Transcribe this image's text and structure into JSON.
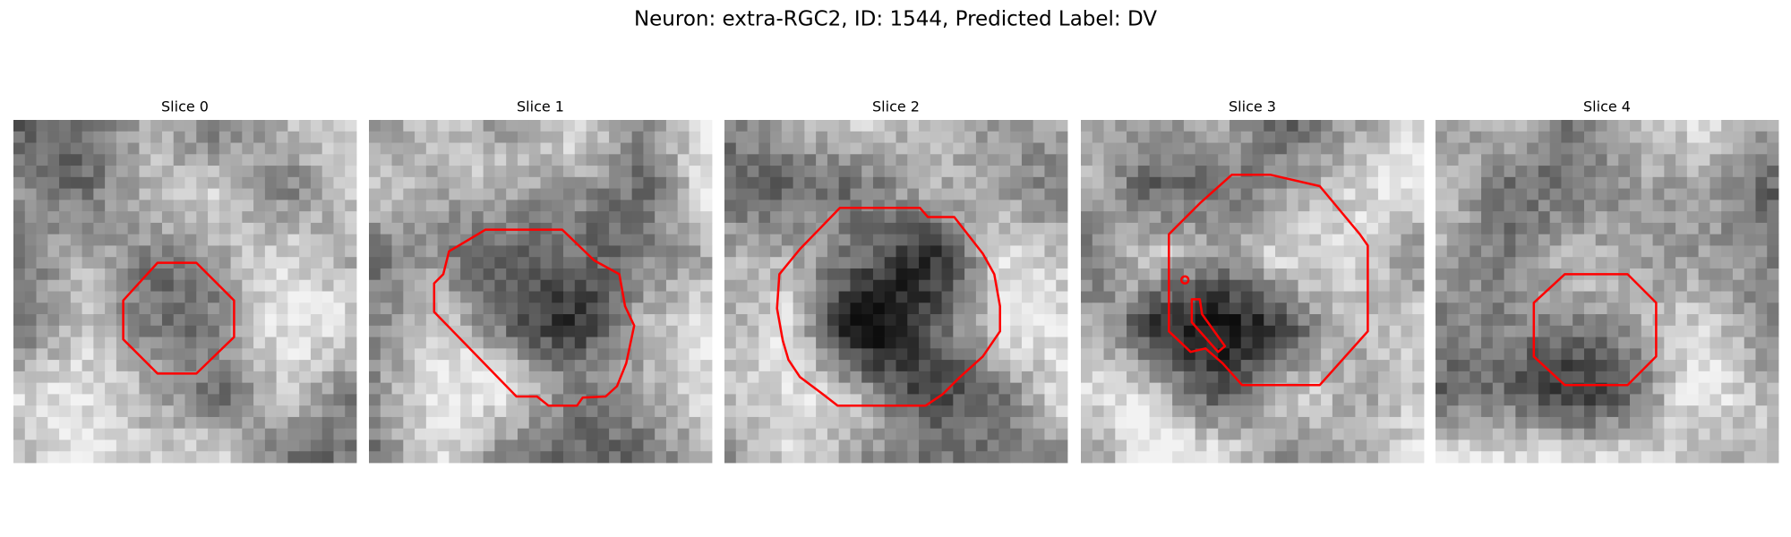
{
  "title": "Neuron: extra-RGC2, ID: 1544, Predicted Label: DV",
  "panels": [
    {
      "title": "Slice 0"
    },
    {
      "title": "Slice 1"
    },
    {
      "title": "Slice 2"
    },
    {
      "title": "Slice 3"
    },
    {
      "title": "Slice 4"
    }
  ]
}
